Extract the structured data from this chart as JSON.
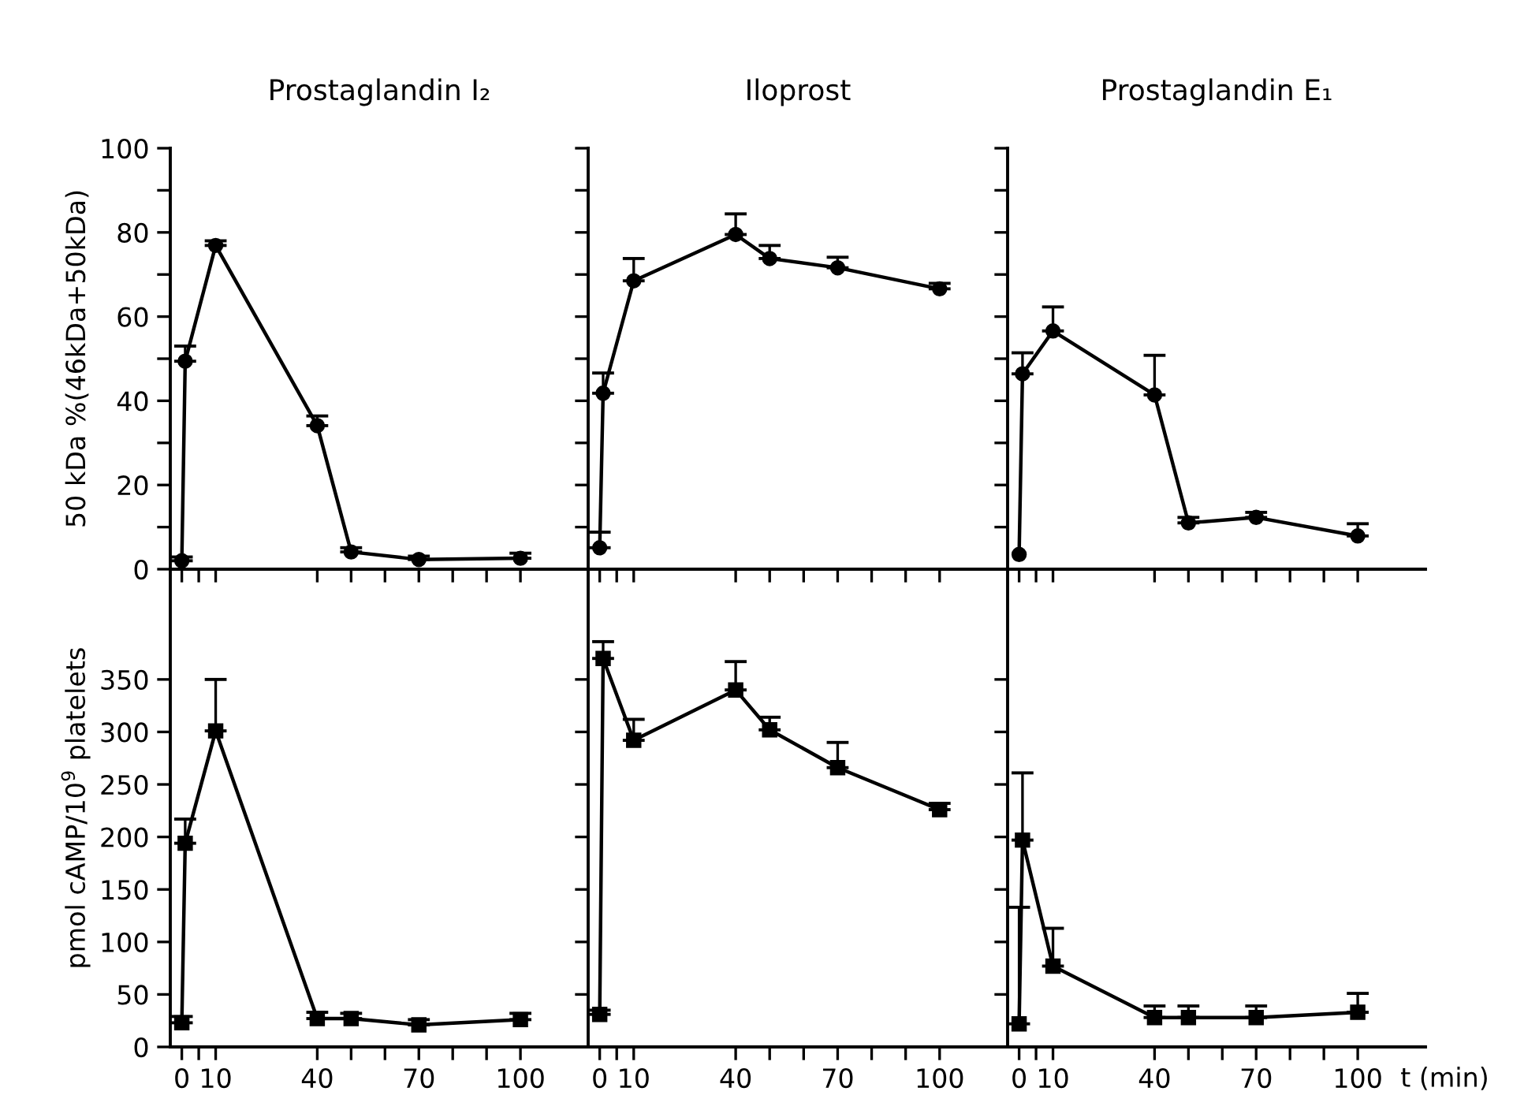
{
  "chart_data": [
    {
      "type": "line",
      "title": "Prostaglandin I₂",
      "ylabel": "50 kDa %(46kDa+50kDa)",
      "marker": "circle",
      "tick_labels": "y",
      "x": [
        0,
        1,
        10,
        40,
        50,
        70,
        100
      ],
      "series": [
        {
          "color": "#000000",
          "values": [
            2,
            49.4,
            76.9,
            34.1,
            4.1,
            2.3,
            2.6
          ],
          "errors": [
            [
              2,
              2.9
            ],
            [
              49.4,
              53
            ],
            [
              76.9,
              78
            ],
            [
              34.1,
              36.4
            ],
            [
              4.1,
              5.1
            ],
            [
              2.3,
              3.1
            ],
            [
              2.6,
              3.8
            ]
          ]
        }
      ],
      "xlim": [
        -3.4,
        120
      ],
      "xticks": [
        0,
        {
          "value": 5,
          "label": null
        },
        10,
        40,
        {
          "value": 50,
          "label": null
        },
        {
          "value": 60,
          "label": null
        },
        70,
        {
          "value": 80,
          "label": null
        },
        {
          "value": 90,
          "label": null
        },
        100
      ],
      "ylim": [
        0,
        100
      ],
      "yticks": [
        0,
        {
          "value": 10,
          "label": null
        },
        20,
        {
          "value": 30,
          "label": null
        },
        40,
        {
          "value": 50,
          "label": null
        },
        60,
        {
          "value": 70,
          "label": null
        },
        80,
        {
          "value": 90,
          "label": null
        },
        100
      ]
    },
    {
      "type": "line",
      "title": "Iloprost",
      "marker": "circle",
      "tick_labels": false,
      "x": [
        0,
        1,
        10,
        40,
        50,
        70,
        100
      ],
      "series": [
        {
          "color": "#000000",
          "values": [
            5.1,
            41.8,
            68.5,
            79.5,
            73.8,
            71.6,
            66.6
          ],
          "errors": [
            [
              5.1,
              8.8
            ],
            [
              41.8,
              46.6
            ],
            [
              68.5,
              73.8
            ],
            [
              79.5,
              84.4
            ],
            [
              73.8,
              76.9
            ],
            [
              71.6,
              74.1
            ],
            [
              66.6,
              67.9
            ]
          ]
        }
      ],
      "xlim": [
        -3.4,
        120
      ],
      "xticks": [
        0,
        {
          "value": 5,
          "label": null
        },
        10,
        40,
        {
          "value": 50,
          "label": null
        },
        {
          "value": 60,
          "label": null
        },
        70,
        {
          "value": 80,
          "label": null
        },
        {
          "value": 90,
          "label": null
        },
        100
      ],
      "ylim": [
        0,
        100
      ],
      "yticks": [
        0,
        {
          "value": 10,
          "label": null
        },
        20,
        {
          "value": 30,
          "label": null
        },
        40,
        {
          "value": 50,
          "label": null
        },
        60,
        {
          "value": 70,
          "label": null
        },
        80,
        {
          "value": 90,
          "label": null
        },
        100
      ]
    },
    {
      "type": "line",
      "title": "Prostaglandin E₁",
      "marker": "circle",
      "tick_labels": false,
      "x": [
        0,
        1,
        10,
        40,
        50,
        70,
        100
      ],
      "series": [
        {
          "color": "#000000",
          "values": [
            3.5,
            46.4,
            56.6,
            41.4,
            11,
            12.3,
            7.9
          ],
          "errors": [
            null,
            [
              46.4,
              51.4
            ],
            [
              56.6,
              62.3
            ],
            [
              41.4,
              50.8
            ],
            [
              11,
              12.3
            ],
            [
              12.3,
              13.5
            ],
            [
              7.9,
              10.8
            ]
          ]
        }
      ],
      "xlim": [
        -3.4,
        120
      ],
      "xticks": [
        0,
        {
          "value": 5,
          "label": null
        },
        10,
        40,
        {
          "value": 50,
          "label": null
        },
        {
          "value": 60,
          "label": null
        },
        70,
        {
          "value": 80,
          "label": null
        },
        {
          "value": 90,
          "label": null
        },
        100
      ],
      "ylim": [
        0,
        100
      ],
      "yticks": [
        0,
        {
          "value": 10,
          "label": null
        },
        20,
        {
          "value": 30,
          "label": null
        },
        40,
        {
          "value": 50,
          "label": null
        },
        60,
        {
          "value": 70,
          "label": null
        },
        80,
        {
          "value": 90,
          "label": null
        },
        100
      ]
    },
    {
      "type": "line",
      "ylabel": "pmol cAMP/10$^{9}$ platelets",
      "marker": "square",
      "x": [
        0,
        1,
        10,
        40,
        50,
        70,
        100
      ],
      "series": [
        {
          "color": "#000000",
          "values": [
            23,
            194,
            301,
            27,
            27,
            21,
            26
          ],
          "errors": [
            [
              23,
              29
            ],
            [
              194,
              217
            ],
            [
              301,
              350
            ],
            [
              27,
              33
            ],
            [
              27,
              32
            ],
            [
              21,
              26
            ],
            [
              26,
              32
            ]
          ]
        }
      ],
      "xlim": [
        -3.4,
        120
      ],
      "xticks": [
        0,
        {
          "value": 5,
          "label": null
        },
        10,
        40,
        {
          "value": 50,
          "label": null
        },
        {
          "value": 60,
          "label": null
        },
        70,
        {
          "value": 80,
          "label": null
        },
        {
          "value": 90,
          "label": null
        },
        100
      ],
      "ylim": [
        0,
        455
      ],
      "yticks": [
        0,
        50,
        100,
        150,
        200,
        250,
        300,
        350
      ]
    },
    {
      "type": "line",
      "marker": "square",
      "tick_labels": "x",
      "x": [
        0,
        1,
        10,
        40,
        50,
        70,
        100
      ],
      "series": [
        {
          "color": "#000000",
          "values": [
            31,
            370,
            292,
            340,
            302,
            266,
            226
          ],
          "errors": [
            [
              31,
              35
            ],
            [
              370,
              386
            ],
            [
              292,
              312
            ],
            [
              340,
              367
            ],
            [
              302,
              314
            ],
            [
              266,
              290
            ],
            [
              226,
              232
            ]
          ]
        }
      ],
      "xlim": [
        -3.4,
        120
      ],
      "xticks": [
        0,
        {
          "value": 5,
          "label": null
        },
        10,
        40,
        {
          "value": 50,
          "label": null
        },
        {
          "value": 60,
          "label": null
        },
        70,
        {
          "value": 80,
          "label": null
        },
        {
          "value": 90,
          "label": null
        },
        100
      ],
      "ylim": [
        0,
        455
      ],
      "yticks": [
        0,
        50,
        100,
        150,
        200,
        250,
        300,
        350
      ]
    },
    {
      "type": "line",
      "xlabel": "t (min)",
      "marker": "square",
      "tick_labels": "x",
      "x": [
        0,
        1,
        10,
        40,
        50,
        70,
        100
      ],
      "series": [
        {
          "color": "#000000",
          "values": [
            22,
            197,
            77,
            28,
            28,
            28,
            33
          ],
          "errors": [
            [
              22,
              133
            ],
            [
              197,
              261
            ],
            [
              77,
              113
            ],
            [
              28,
              39
            ],
            [
              28,
              39
            ],
            [
              28,
              39
            ],
            [
              33,
              51
            ]
          ]
        }
      ],
      "xlim": [
        -3.4,
        120
      ],
      "xticks": [
        0,
        {
          "value": 5,
          "label": null
        },
        10,
        40,
        {
          "value": 50,
          "label": null
        },
        {
          "value": 60,
          "label": null
        },
        70,
        {
          "value": 80,
          "label": null
        },
        {
          "value": 90,
          "label": null
        },
        100
      ],
      "ylim": [
        0,
        455
      ],
      "yticks": [
        0,
        50,
        100,
        150,
        200,
        250,
        300,
        350
      ]
    }
  ]
}
